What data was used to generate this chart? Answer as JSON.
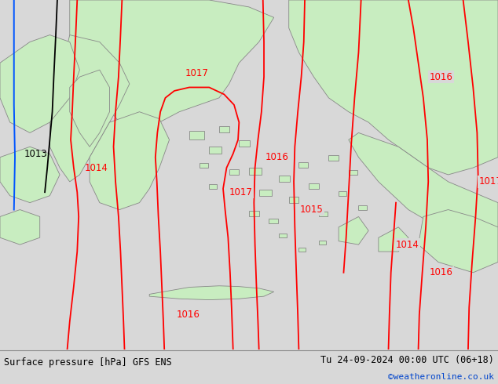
{
  "title_left": "Surface pressure [hPa] GFS ENS",
  "title_right": "Tu 24-09-2024 00:00 UTC (06+18)",
  "title_right2": "©weatheronline.co.uk",
  "bg_color": "#d8d8d8",
  "land_color": "#c8edc0",
  "sea_color": "#d8d8d8",
  "border_color": "#888888",
  "contour_color": "#ff0000",
  "contour_black": "#000000",
  "contour_blue": "#0055ff",
  "label_fontsize": 8.5,
  "figsize": [
    6.34,
    4.9
  ],
  "dpi": 100,
  "bottom_bg": "#e8e8e8"
}
